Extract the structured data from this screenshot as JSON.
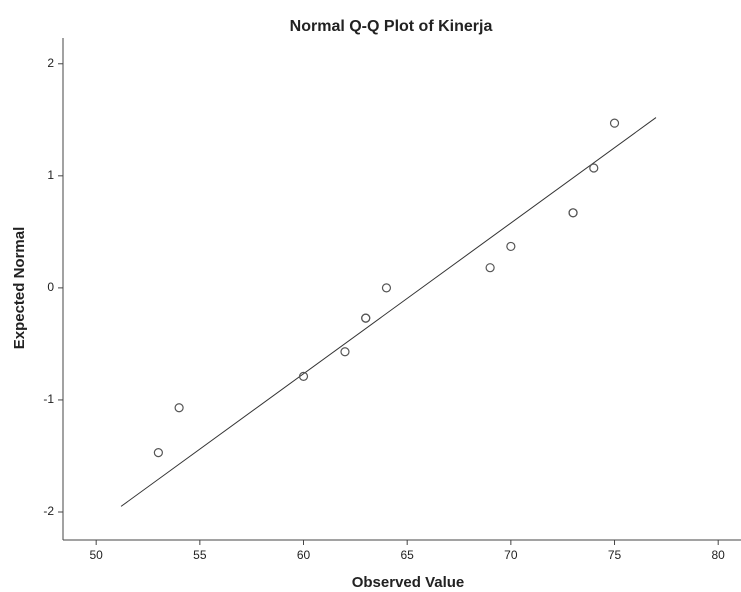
{
  "chart_data": {
    "type": "scatter",
    "title": "Normal Q-Q Plot of Kinerja",
    "x_label": "Observed Value",
    "y_label": "Expected Normal",
    "x": [
      53,
      54,
      60,
      62,
      63,
      63,
      64,
      69,
      70,
      73,
      73,
      74,
      75
    ],
    "values": [
      -1.47,
      -1.07,
      -0.79,
      -0.57,
      -0.27,
      -0.27,
      0,
      0.18,
      0.37,
      0.67,
      0.67,
      1.07,
      1.47
    ],
    "color": "#555555",
    "reference_line": {
      "x": [
        51.2,
        77
      ],
      "y": [
        -1.95,
        1.52
      ],
      "color": "#333333"
    },
    "xlim": [
      48.4,
      81.1
    ],
    "xticks": [
      50,
      55,
      60,
      65,
      70,
      75,
      80
    ],
    "ylim": [
      -2.25,
      2.23
    ],
    "yticks": [
      -2,
      -1,
      0,
      1,
      2
    ]
  }
}
